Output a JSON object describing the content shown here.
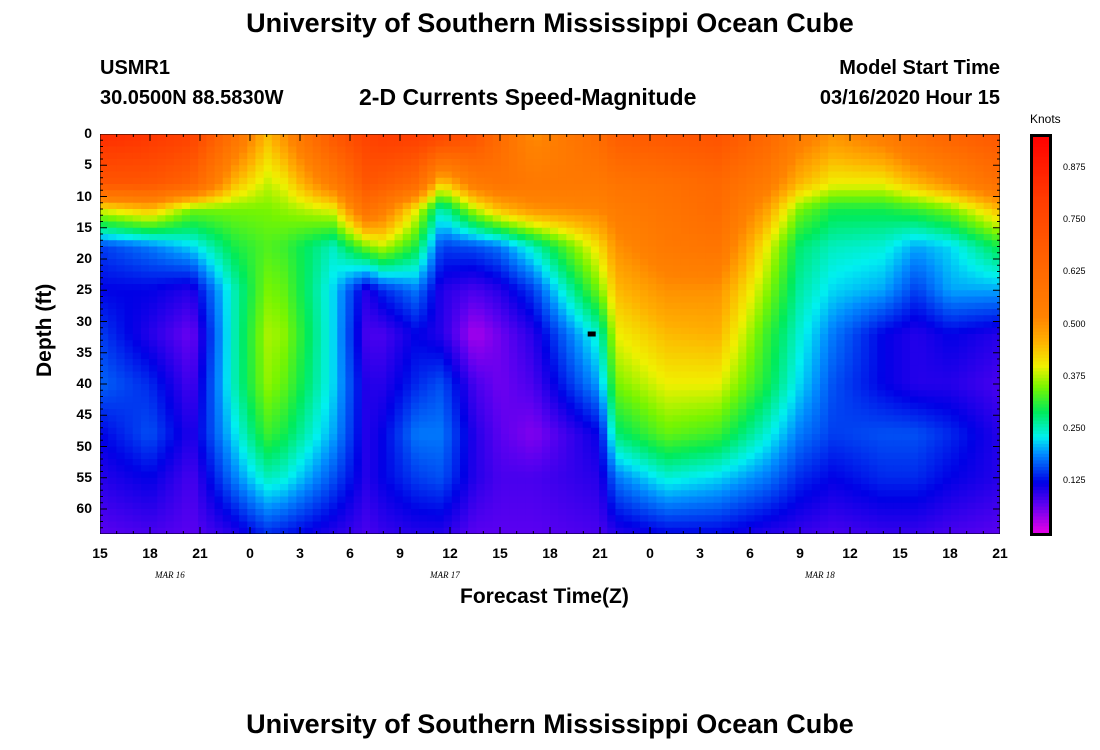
{
  "header": {
    "title": "University of Southern Mississippi Ocean Cube",
    "station": "USMR1",
    "coords": "30.0500N 88.5830W",
    "product": "2-D Currents Speed-Magnitude",
    "model_start_label": "Model Start Time",
    "model_start_value": "03/16/2020 Hour 15"
  },
  "footer": {
    "title": "University of Southern Mississippi Ocean Cube"
  },
  "colors": {
    "text": "#000000",
    "background": "#ffffff"
  },
  "chart_data": {
    "type": "heatmap",
    "title": "2-D Currents Speed-Magnitude",
    "xlabel": "Forecast Time(Z)",
    "ylabel": "Depth (ft)",
    "colorbar_label": "Knots",
    "x_tick_labels": [
      "15",
      "18",
      "21",
      "0",
      "3",
      "6",
      "9",
      "12",
      "15",
      "18",
      "21",
      "0",
      "3",
      "6",
      "9",
      "12",
      "15",
      "18",
      "21"
    ],
    "x_hours": [
      0,
      3,
      6,
      9,
      12,
      15,
      18,
      21,
      24,
      27,
      30,
      33,
      36,
      39,
      42,
      45,
      48,
      51,
      54
    ],
    "date_labels": [
      {
        "text": "MAR 16",
        "hour": 4.5
      },
      {
        "text": "MAR 17",
        "hour": 21
      },
      {
        "text": "MAR 18",
        "hour": 43.5
      }
    ],
    "y_ticks": [
      0,
      5,
      10,
      15,
      20,
      25,
      30,
      35,
      40,
      45,
      50,
      55,
      60
    ],
    "depth_range": [
      0,
      64
    ],
    "hour_range": [
      0,
      54
    ],
    "color_range": [
      0,
      0.95
    ],
    "colorbar_ticks": [
      0.125,
      0.25,
      0.375,
      0.5,
      0.625,
      0.75,
      0.875
    ],
    "colorbar_tick_labels": [
      "0.125",
      "0.250",
      "0.375",
      "0.500",
      "0.625",
      "0.750",
      "0.875"
    ],
    "depths_ft": [
      0,
      8,
      12,
      18,
      25,
      32,
      40,
      48,
      55,
      64
    ],
    "hours": [
      0,
      3,
      5.5,
      8,
      10,
      11,
      14,
      16,
      17,
      19,
      20.5,
      22.5,
      24,
      26,
      30,
      31,
      34,
      37,
      40,
      42,
      44,
      47,
      49,
      51,
      54
    ],
    "speed_knots": [
      [
        0.85,
        0.82,
        0.78,
        0.6,
        0.45,
        0.5,
        0.7,
        0.78,
        0.8,
        0.8,
        0.78,
        0.72,
        0.62,
        0.5,
        0.62,
        0.68,
        0.7,
        0.72,
        0.64,
        0.55,
        0.5,
        0.55,
        0.62,
        0.66,
        0.7
      ],
      [
        0.7,
        0.7,
        0.65,
        0.45,
        0.38,
        0.4,
        0.55,
        0.7,
        0.68,
        0.62,
        0.42,
        0.55,
        0.58,
        0.56,
        0.56,
        0.58,
        0.6,
        0.63,
        0.55,
        0.45,
        0.4,
        0.4,
        0.45,
        0.5,
        0.6
      ],
      [
        0.4,
        0.45,
        0.35,
        0.35,
        0.35,
        0.36,
        0.4,
        0.6,
        0.55,
        0.4,
        0.25,
        0.38,
        0.45,
        0.5,
        0.52,
        0.55,
        0.58,
        0.62,
        0.48,
        0.35,
        0.3,
        0.3,
        0.32,
        0.35,
        0.45
      ],
      [
        0.15,
        0.18,
        0.22,
        0.3,
        0.33,
        0.32,
        0.25,
        0.35,
        0.38,
        0.3,
        0.15,
        0.16,
        0.18,
        0.25,
        0.42,
        0.5,
        0.56,
        0.58,
        0.4,
        0.28,
        0.25,
        0.24,
        0.2,
        0.22,
        0.3
      ],
      [
        0.12,
        0.12,
        0.1,
        0.25,
        0.35,
        0.34,
        0.22,
        0.1,
        0.14,
        0.18,
        0.1,
        0.08,
        0.1,
        0.15,
        0.35,
        0.45,
        0.5,
        0.5,
        0.36,
        0.26,
        0.22,
        0.2,
        0.15,
        0.2,
        0.2
      ],
      [
        0.15,
        0.1,
        0.06,
        0.25,
        0.37,
        0.36,
        0.22,
        0.08,
        0.08,
        0.12,
        0.1,
        0.03,
        0.06,
        0.1,
        0.25,
        0.4,
        0.45,
        0.46,
        0.32,
        0.24,
        0.18,
        0.12,
        0.1,
        0.12,
        0.1
      ],
      [
        0.17,
        0.14,
        0.08,
        0.25,
        0.36,
        0.34,
        0.22,
        0.1,
        0.1,
        0.14,
        0.16,
        0.08,
        0.06,
        0.08,
        0.2,
        0.35,
        0.4,
        0.4,
        0.3,
        0.22,
        0.16,
        0.12,
        0.1,
        0.1,
        0.08
      ],
      [
        0.12,
        0.16,
        0.1,
        0.22,
        0.32,
        0.3,
        0.2,
        0.1,
        0.12,
        0.18,
        0.18,
        0.1,
        0.07,
        0.05,
        0.12,
        0.28,
        0.34,
        0.32,
        0.24,
        0.18,
        0.15,
        0.16,
        0.16,
        0.14,
        0.1
      ],
      [
        0.1,
        0.12,
        0.08,
        0.18,
        0.25,
        0.24,
        0.16,
        0.1,
        0.12,
        0.15,
        0.16,
        0.1,
        0.08,
        0.08,
        0.1,
        0.18,
        0.24,
        0.22,
        0.18,
        0.14,
        0.12,
        0.14,
        0.14,
        0.12,
        0.1
      ],
      [
        0.07,
        0.08,
        0.07,
        0.1,
        0.14,
        0.13,
        0.1,
        0.08,
        0.09,
        0.1,
        0.1,
        0.07,
        0.07,
        0.07,
        0.08,
        0.1,
        0.12,
        0.12,
        0.1,
        0.09,
        0.08,
        0.09,
        0.09,
        0.08,
        0.07
      ]
    ],
    "marker": {
      "hour": 29.5,
      "depth": 32
    }
  }
}
